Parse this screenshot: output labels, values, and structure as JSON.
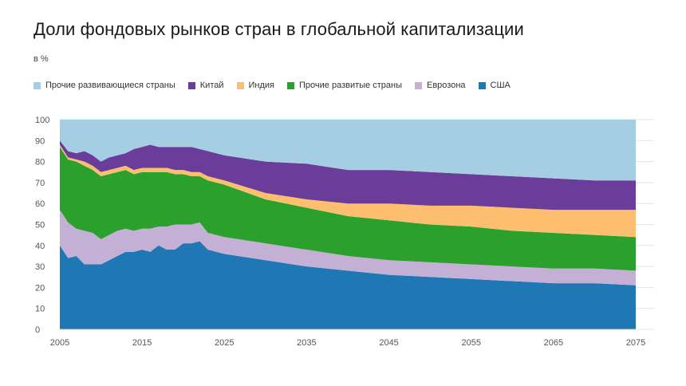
{
  "chart_data": {
    "type": "area",
    "stacked": true,
    "title": "Доли фондовых рынков стран в глобальной капитализации",
    "ylabel": "в %",
    "xlabel": "",
    "ylim": [
      0,
      100
    ],
    "xlim": [
      2005,
      2075
    ],
    "grid": true,
    "legend_position": "top-left",
    "x_ticks": [
      "2005",
      "2015",
      "2025",
      "2035",
      "2045",
      "2055",
      "2065",
      "2075"
    ],
    "y_ticks": [
      "0",
      "10",
      "20",
      "30",
      "40",
      "50",
      "60",
      "70",
      "80",
      "90",
      "100"
    ],
    "x": [
      2005,
      2006,
      2007,
      2008,
      2009,
      2010,
      2011,
      2012,
      2013,
      2014,
      2015,
      2016,
      2017,
      2018,
      2019,
      2020,
      2021,
      2022,
      2023,
      2024,
      2025,
      2030,
      2035,
      2040,
      2045,
      2050,
      2055,
      2060,
      2065,
      2070,
      2075
    ],
    "series": [
      {
        "name": "США",
        "color": "#1f77b4",
        "values": [
          40,
          34,
          35,
          31,
          31,
          31,
          33,
          35,
          37,
          37,
          38,
          37,
          40,
          38,
          38,
          41,
          41,
          42,
          38,
          37,
          36,
          33,
          30,
          28,
          26,
          25,
          24,
          23,
          22,
          22,
          21
        ]
      },
      {
        "name": "Еврозона",
        "color": "#c5b0d5",
        "values": [
          17,
          17,
          13,
          16,
          15,
          12,
          12,
          12,
          11,
          10,
          10,
          11,
          9,
          11,
          12,
          9,
          9,
          9,
          8,
          8,
          8,
          8,
          8,
          7,
          7,
          7,
          7,
          7,
          7,
          7,
          7
        ]
      },
      {
        "name": "Прочие развитые страны",
        "color": "#2ca02c",
        "values": [
          30,
          30,
          32,
          31,
          30,
          30,
          29,
          28,
          28,
          27,
          27,
          27,
          26,
          26,
          24,
          24,
          23,
          22,
          25,
          25,
          25,
          21,
          20,
          19,
          19,
          18,
          18,
          17,
          17,
          16,
          16
        ]
      },
      {
        "name": "Индия",
        "color": "#fdbf6f",
        "values": [
          1,
          1,
          1,
          2,
          2,
          2,
          2,
          2,
          2,
          2,
          2,
          2,
          2,
          2,
          2,
          2,
          2,
          2,
          2,
          2,
          2,
          3,
          4,
          6,
          8,
          9,
          10,
          11,
          11,
          12,
          13
        ]
      },
      {
        "name": "Китай",
        "color": "#6a3d9a",
        "values": [
          2,
          3,
          3,
          5,
          5,
          5,
          6,
          6,
          6,
          10,
          10,
          11,
          10,
          10,
          11,
          11,
          12,
          11,
          12,
          12,
          12,
          15,
          17,
          16,
          16,
          16,
          15,
          15,
          15,
          14,
          14
        ]
      },
      {
        "name": "Прочие развивающиеся страны",
        "color": "#a6cee3",
        "values": [
          10,
          15,
          16,
          15,
          17,
          20,
          18,
          17,
          16,
          14,
          13,
          12,
          13,
          13,
          13,
          13,
          13,
          14,
          15,
          16,
          17,
          20,
          21,
          24,
          24,
          25,
          26,
          27,
          28,
          29,
          29
        ]
      }
    ]
  }
}
